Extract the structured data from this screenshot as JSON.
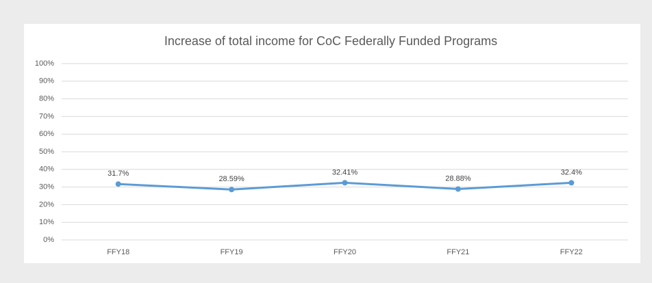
{
  "chart_data": {
    "type": "line",
    "title": "Increase of total income for CoC Federally Funded Programs",
    "categories": [
      "FFY18",
      "FFY19",
      "FFY20",
      "FFY21",
      "FFY22"
    ],
    "series": [
      {
        "name": "Increase of total income",
        "color": "#5b9bd5",
        "values": [
          31.7,
          28.59,
          32.41,
          28.88,
          32.4
        ],
        "value_labels": [
          "31.7%",
          "28.59%",
          "32.41%",
          "28.88%",
          "32.4%"
        ]
      }
    ],
    "ylim": [
      0,
      100
    ],
    "yticks": [
      {
        "value": 0,
        "label": "0%"
      },
      {
        "value": 10,
        "label": "10%"
      },
      {
        "value": 20,
        "label": "20%"
      },
      {
        "value": 30,
        "label": "30%"
      },
      {
        "value": 40,
        "label": "40%"
      },
      {
        "value": 50,
        "label": "50%"
      },
      {
        "value": 60,
        "label": "60%"
      },
      {
        "value": 70,
        "label": "70%"
      },
      {
        "value": 80,
        "label": "80%"
      },
      {
        "value": 90,
        "label": "90%"
      },
      {
        "value": 100,
        "label": "100%"
      }
    ],
    "grid": true
  }
}
